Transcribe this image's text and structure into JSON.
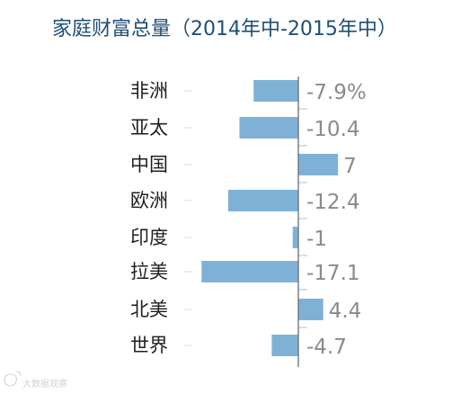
{
  "chart_data": {
    "type": "bar",
    "title": "家庭财富总量（2014年中-2015年中）",
    "categories": [
      "非洲",
      "亚太",
      "中国",
      "欧洲",
      "印度",
      "拉美",
      "北美",
      "世界"
    ],
    "values": [
      -7.9,
      -10.4,
      7,
      -12.4,
      -1,
      -17.1,
      4.4,
      -4.7
    ],
    "value_labels": [
      "-7.9%",
      "-10.4",
      "7",
      "-12.4",
      "-1",
      "-17.1",
      "4.4",
      "-4.7"
    ],
    "xlabel": "",
    "ylabel": "",
    "xlim": [
      -20,
      10
    ],
    "grid": false,
    "orientation": "horizontal"
  },
  "colors": {
    "title": "#1f4f78",
    "bar": "#7fb1d7",
    "category_text": "#1f1f1f",
    "value_text": "#8a8a8a",
    "axis": "#6f7780"
  },
  "watermark": {
    "icon": "weibo-icon",
    "text": "大数据观察"
  }
}
